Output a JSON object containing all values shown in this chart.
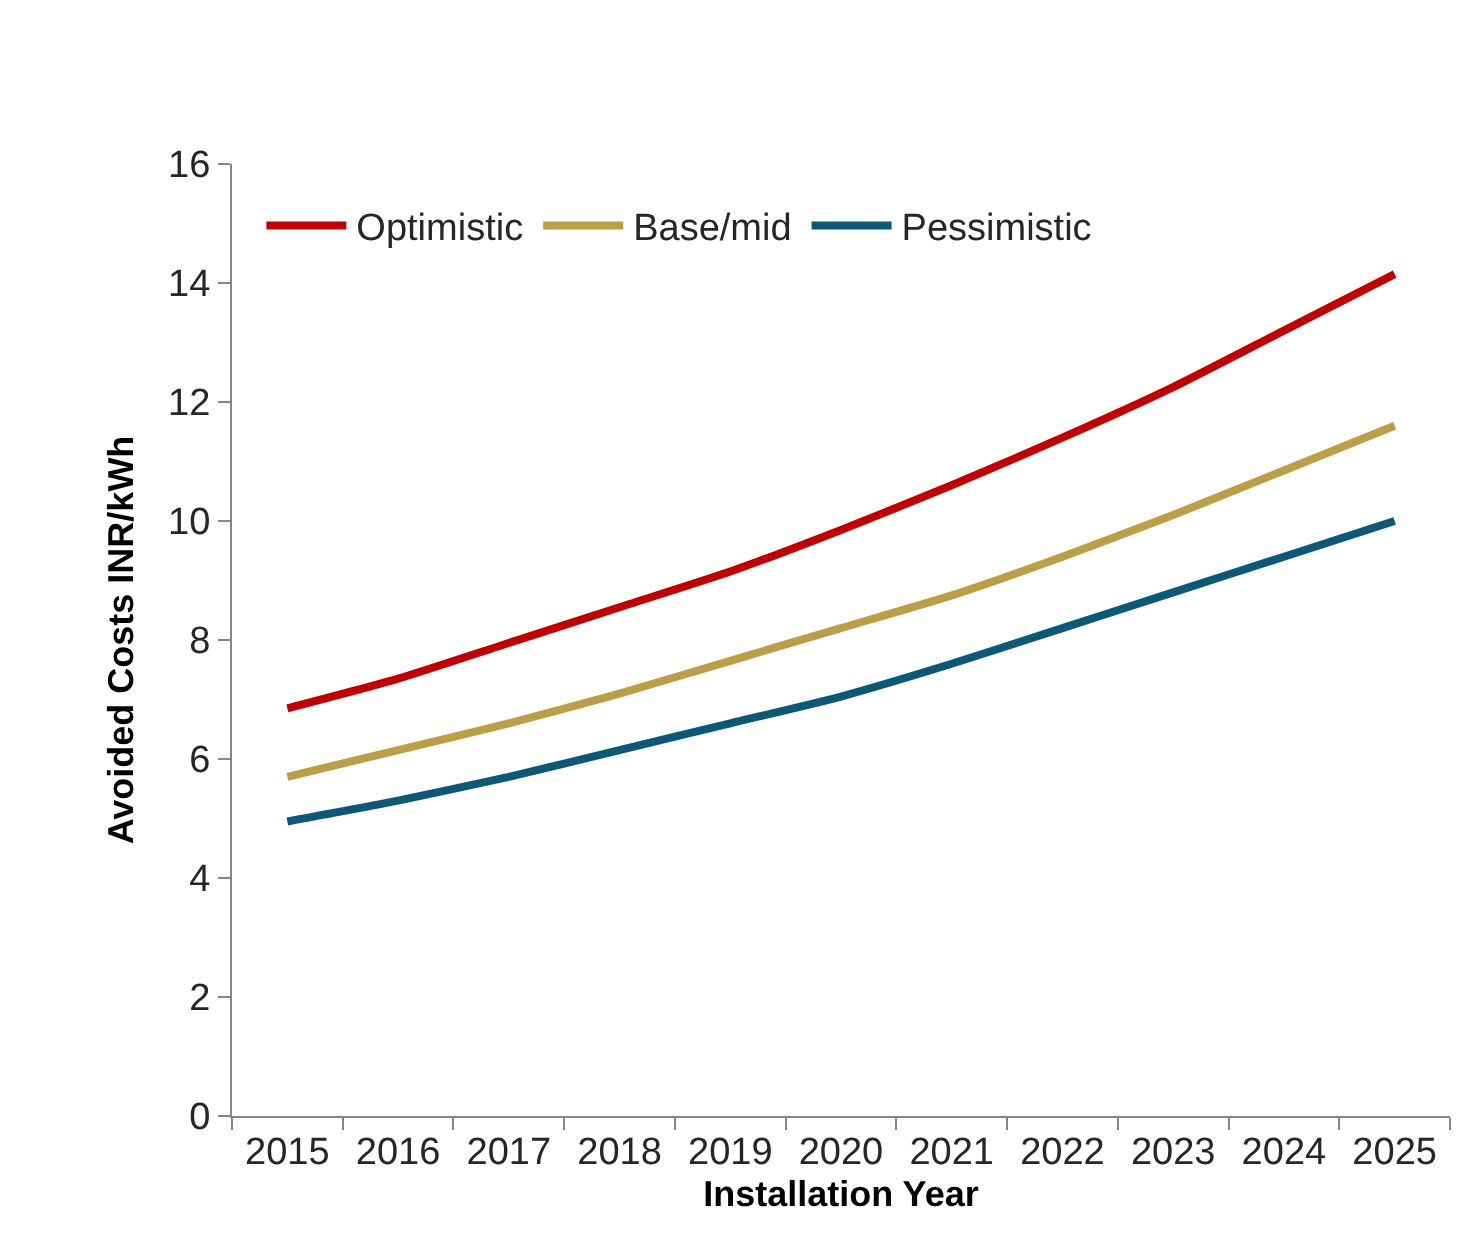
{
  "chart_data": {
    "type": "line",
    "xlabel": "Installation Year",
    "ylabel": "Avoided Costs INR/kWh",
    "categories": [
      "2015",
      "2016",
      "2017",
      "2018",
      "2019",
      "2020",
      "2021",
      "2022",
      "2023",
      "2024",
      "2025"
    ],
    "series": [
      {
        "name": "Optimistic",
        "color": "#c00000",
        "values": [
          6.85,
          7.35,
          7.95,
          8.55,
          9.15,
          9.85,
          10.6,
          11.4,
          12.25,
          13.2,
          14.15
        ]
      },
      {
        "name": "Base/mid",
        "color": "#bb9e46",
        "values": [
          5.7,
          6.15,
          6.6,
          7.1,
          7.65,
          8.2,
          8.75,
          9.4,
          10.1,
          10.85,
          11.6
        ]
      },
      {
        "name": "Pessimistic",
        "color": "#0e5877",
        "values": [
          4.95,
          5.3,
          5.7,
          6.15,
          6.6,
          7.05,
          7.6,
          8.2,
          8.8,
          9.4,
          10.0
        ]
      }
    ],
    "ylim": [
      0,
      16
    ],
    "yticks": [
      0,
      2,
      4,
      6,
      8,
      10,
      12,
      14,
      16
    ],
    "grid": false,
    "legend": "top left",
    "marker": "none",
    "line_style": "solid"
  }
}
